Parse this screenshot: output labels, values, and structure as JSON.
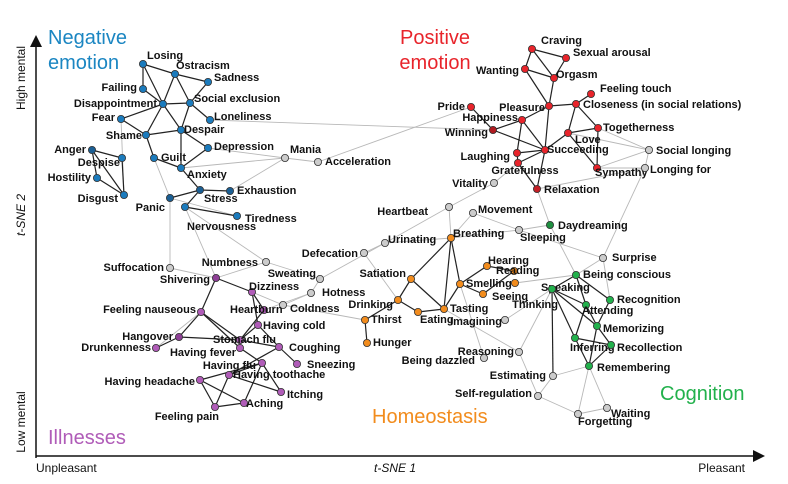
{
  "groups": [
    {
      "label": "Negative emotion",
      "color": "#1b86c2"
    },
    {
      "label": "Positive emotion",
      "color": "#e8242b"
    },
    {
      "label": "Illnesses",
      "color": "#b05cb8"
    },
    {
      "label": "Homeostasis",
      "color": "#f28c1d"
    },
    {
      "label": "Cognition",
      "color": "#22b14c"
    }
  ],
  "axes": {
    "y_top": "High mental",
    "y_label": "t-SNE 2",
    "y_bottom": "Low mental",
    "x_left": "Unpleasant",
    "x_label": "t-SNE 1",
    "x_right": "Pleasant"
  },
  "nodes": [
    {
      "label": "Losing",
      "color": "#1b7bbd"
    },
    {
      "label": "Ostracism",
      "color": "#1b7bbd"
    },
    {
      "label": "Sadness",
      "color": "#1b7bbd"
    },
    {
      "label": "Failing",
      "color": "#1b7bbd"
    },
    {
      "label": "Disappointment",
      "color": "#1b7bbd"
    },
    {
      "label": "Social exclusion",
      "color": "#1b7bbd"
    },
    {
      "label": "Fear",
      "color": "#1b7bbd"
    },
    {
      "label": "Loneliness",
      "color": "#1b7bbd"
    },
    {
      "label": "Shame",
      "color": "#1b7bbd"
    },
    {
      "label": "Despair",
      "color": "#1b7bbd"
    },
    {
      "label": "Depression",
      "color": "#1b7bbd"
    },
    {
      "label": "Anger",
      "color": "#1b5f94"
    },
    {
      "label": "Despise",
      "color": "#1b7bbd"
    },
    {
      "label": "Guilt",
      "color": "#1b7bbd"
    },
    {
      "label": "Hostility",
      "color": "#1b7bbd"
    },
    {
      "label": "Anxiety",
      "color": "#1b7bbd"
    },
    {
      "label": "Disgust",
      "color": "#1b7bbd"
    },
    {
      "label": "Panic",
      "color": "#1b5f94"
    },
    {
      "label": "Exhaustion",
      "color": "#1b5f94"
    },
    {
      "label": "Stress",
      "color": "#1b5f94"
    },
    {
      "label": "Tiredness",
      "color": "#1b7bbd"
    },
    {
      "label": "Nervousness",
      "color": "#1b7bbd"
    },
    {
      "label": "Mania",
      "color": "#cccccc"
    },
    {
      "label": "Acceleration",
      "color": "#cccccc"
    },
    {
      "label": "Craving",
      "color": "#e8242b"
    },
    {
      "label": "Sexual arousal",
      "color": "#e8242b"
    },
    {
      "label": "Wanting",
      "color": "#e8242b"
    },
    {
      "label": "Orgasm",
      "color": "#e8242b"
    },
    {
      "label": "Feeling touch",
      "color": "#e8242b"
    },
    {
      "label": "Pride",
      "color": "#e8242b"
    },
    {
      "label": "Pleasure",
      "color": "#e8242b"
    },
    {
      "label": "Closeness (in social relations)",
      "color": "#e8242b"
    },
    {
      "label": "Happiness",
      "color": "#e8242b"
    },
    {
      "label": "Winning",
      "color": "#b01a20"
    },
    {
      "label": "Togetherness",
      "color": "#e8242b"
    },
    {
      "label": "Love",
      "color": "#e8242b"
    },
    {
      "label": "Laughing",
      "color": "#e8242b"
    },
    {
      "label": "Succeeding",
      "color": "#e8242b"
    },
    {
      "label": "Social longing",
      "color": "#cccccc"
    },
    {
      "label": "Gratefulness",
      "color": "#e8242b"
    },
    {
      "label": "Sympathy",
      "color": "#e8242b"
    },
    {
      "label": "Longing for",
      "color": "#cccccc"
    },
    {
      "label": "Vitality",
      "color": "#cccccc"
    },
    {
      "label": "Relaxation",
      "color": "#c41f26"
    },
    {
      "label": "Heartbeat",
      "color": "#cccccc"
    },
    {
      "label": "Movement",
      "color": "#cccccc"
    },
    {
      "label": "Daydreaming",
      "color": "#1e8f40"
    },
    {
      "label": "Urinating",
      "color": "#cccccc"
    },
    {
      "label": "Breathing",
      "color": "#f28c1d"
    },
    {
      "label": "Sleeping",
      "color": "#cccccc"
    },
    {
      "label": "Defecation",
      "color": "#cccccc"
    },
    {
      "label": "Numbness",
      "color": "#cccccc"
    },
    {
      "label": "Suffocation",
      "color": "#cccccc"
    },
    {
      "label": "Shivering",
      "color": "#8e3f96"
    },
    {
      "label": "Sweating",
      "color": "#cccccc"
    },
    {
      "label": "Satiation",
      "color": "#f28c1d"
    },
    {
      "label": "Hearing",
      "color": "#f28c1d"
    },
    {
      "label": "Reading",
      "color": "#f28c1d"
    },
    {
      "label": "Smelling",
      "color": "#f28c1d"
    },
    {
      "label": "Speaking",
      "color": "#f28c1d"
    },
    {
      "label": "Seeing",
      "color": "#f28c1d"
    },
    {
      "label": "Dizziness",
      "color": "#b05cb8"
    },
    {
      "label": "Hotness",
      "color": "#cccccc"
    },
    {
      "label": "Drinking",
      "color": "#f28c1d"
    },
    {
      "label": "Coldness",
      "color": "#cccccc"
    },
    {
      "label": "Tasting",
      "color": "#f28c1d"
    },
    {
      "label": "Eating",
      "color": "#f28c1d"
    },
    {
      "label": "Thirst",
      "color": "#f28c1d"
    },
    {
      "label": "Heartburn",
      "color": "#b05cb8"
    },
    {
      "label": "Feeling nauseous",
      "color": "#b05cb8"
    },
    {
      "label": "Having cold",
      "color": "#b05cb8"
    },
    {
      "label": "Imagining",
      "color": "#cccccc"
    },
    {
      "label": "Hangover",
      "color": "#8e3f96"
    },
    {
      "label": "Stomach flu",
      "color": "#b05cb8"
    },
    {
      "label": "Hunger",
      "color": "#f28c1d"
    },
    {
      "label": "Drunkenness",
      "color": "#b05cb8"
    },
    {
      "label": "Having fever",
      "color": "#b05cb8"
    },
    {
      "label": "Coughing",
      "color": "#b05cb8"
    },
    {
      "label": "Reasoning",
      "color": "#cccccc"
    },
    {
      "label": "Being dazzled",
      "color": "#cccccc"
    },
    {
      "label": "Having flu",
      "color": "#b05cb8"
    },
    {
      "label": "Sneezing",
      "color": "#b05cb8"
    },
    {
      "label": "Having toothache",
      "color": "#b05cb8"
    },
    {
      "label": "Having headache",
      "color": "#b05cb8"
    },
    {
      "label": "Itching",
      "color": "#b05cb8"
    },
    {
      "label": "Aching",
      "color": "#b05cb8"
    },
    {
      "label": "Feeling pain",
      "color": "#b05cb8"
    },
    {
      "label": "Surprise",
      "color": "#cccccc"
    },
    {
      "label": "Being conscious",
      "color": "#22b14c"
    },
    {
      "label": "Thinking",
      "color": "#22b14c"
    },
    {
      "label": "Recognition",
      "color": "#22b14c"
    },
    {
      "label": "Attending",
      "color": "#22b14c"
    },
    {
      "label": "Memorizing",
      "color": "#22b14c"
    },
    {
      "label": "Inferring",
      "color": "#22b14c"
    },
    {
      "label": "Recollection",
      "color": "#22b14c"
    },
    {
      "label": "Estimating",
      "color": "#cccccc"
    },
    {
      "label": "Remembering",
      "color": "#22b14c"
    },
    {
      "label": "Self-regulation",
      "color": "#cccccc"
    },
    {
      "label": "Waiting",
      "color": "#cccccc"
    },
    {
      "label": "Forgetting",
      "color": "#cccccc"
    }
  ]
}
